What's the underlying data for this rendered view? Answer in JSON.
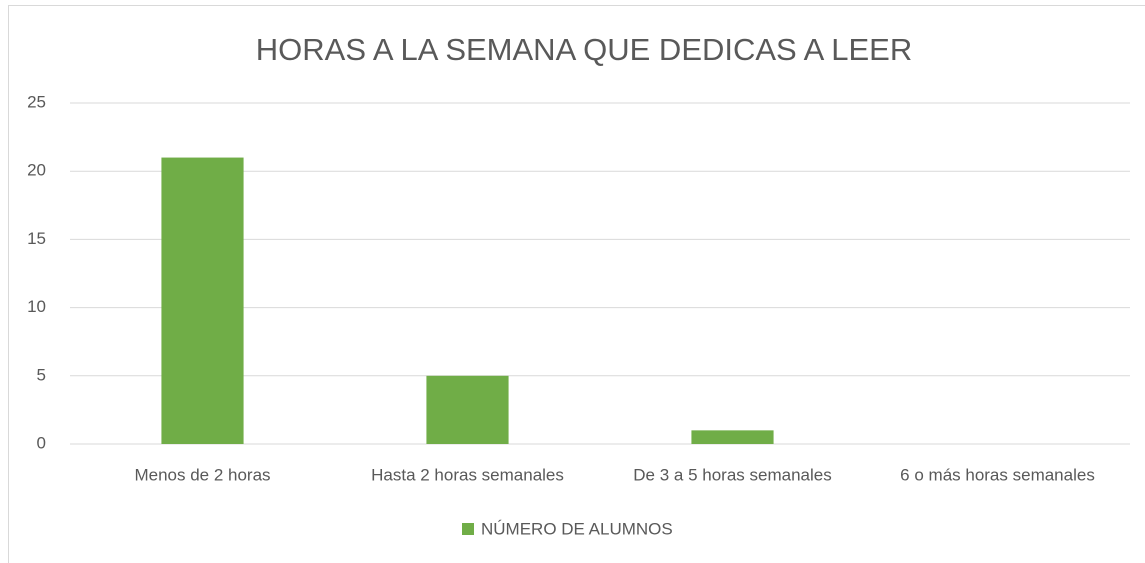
{
  "chart_data": {
    "type": "bar",
    "title": "HORAS A LA SEMANA QUE DEDICAS A LEER",
    "categories": [
      "Menos de 2 horas",
      "Hasta 2 horas semanales",
      "De 3 a 5 horas semanales",
      "6 o más horas semanales"
    ],
    "series": [
      {
        "name": "NÚMERO DE ALUMNOS",
        "color": "#70ad47",
        "values": [
          21,
          5,
          1,
          0
        ]
      }
    ],
    "ylim": [
      0,
      25
    ],
    "yticks": [
      0,
      5,
      10,
      15,
      20,
      25
    ],
    "grid": true,
    "legend": "bottom"
  }
}
